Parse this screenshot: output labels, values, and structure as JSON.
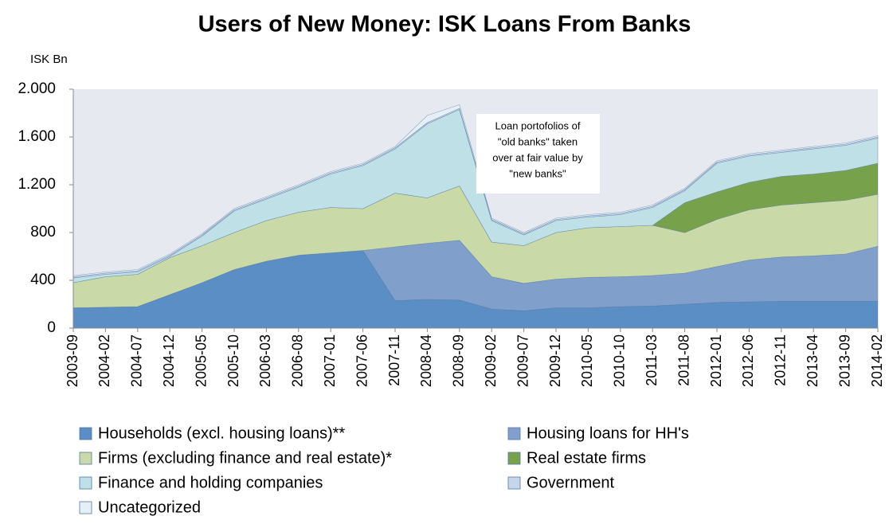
{
  "chart_data": {
    "type": "stacked_area",
    "title": "Users of New Money: ISK Loans From Banks",
    "y_axis_label": "ISK Bn",
    "categories": [
      "2003-09",
      "2004-02",
      "2004-07",
      "2004-12",
      "2005-05",
      "2005-10",
      "2006-03",
      "2006-08",
      "2007-01",
      "2007-06",
      "2007-11",
      "2008-04",
      "2008-09",
      "2009-02",
      "2009-07",
      "2009-12",
      "2010-05",
      "2010-10",
      "2011-03",
      "2011-08",
      "2012-01",
      "2012-06",
      "2012-11",
      "2013-04",
      "2013-09",
      "2014-02"
    ],
    "series": [
      {
        "name": "Households (excl. housing loans)**",
        "color": "#5b8ec4",
        "values": [
          170,
          175,
          180,
          280,
          380,
          490,
          560,
          610,
          630,
          650,
          230,
          240,
          235,
          160,
          145,
          170,
          170,
          180,
          185,
          200,
          215,
          220,
          225,
          225,
          225,
          225
        ]
      },
      {
        "name": "Housing loans for HH's",
        "color": "#819fcb",
        "values": [
          0,
          0,
          0,
          0,
          0,
          0,
          0,
          0,
          0,
          0,
          450,
          470,
          500,
          270,
          230,
          240,
          255,
          250,
          255,
          260,
          300,
          350,
          370,
          380,
          395,
          460
        ]
      },
      {
        "name": "Firms (excluding finance and real estate)*",
        "color": "#c9d9a8",
        "values": [
          210,
          255,
          270,
          310,
          310,
          310,
          340,
          360,
          380,
          350,
          450,
          380,
          455,
          290,
          315,
          390,
          415,
          420,
          420,
          340,
          395,
          420,
          435,
          445,
          450,
          435
        ]
      },
      {
        "name": "Real estate firms",
        "color": "#78a14b",
        "values": [
          0,
          0,
          0,
          0,
          0,
          0,
          0,
          0,
          0,
          0,
          0,
          0,
          0,
          0,
          0,
          0,
          0,
          0,
          0,
          250,
          230,
          230,
          240,
          240,
          250,
          260
        ]
      },
      {
        "name": "Finance and holding companies",
        "color": "#bfe0e6",
        "values": [
          40,
          20,
          20,
          10,
          80,
          180,
          180,
          210,
          280,
          360,
          370,
          620,
          640,
          180,
          90,
          100,
          90,
          100,
          150,
          100,
          240,
          220,
          200,
          210,
          210,
          210
        ]
      },
      {
        "name": "Government",
        "color": "#c7d5ec",
        "values": [
          10,
          10,
          10,
          10,
          10,
          10,
          10,
          10,
          10,
          10,
          10,
          10,
          10,
          10,
          10,
          10,
          10,
          10,
          10,
          10,
          10,
          10,
          10,
          10,
          10,
          10
        ]
      },
      {
        "name": "Uncategorized",
        "color": "#e4f0f5",
        "values": [
          10,
          10,
          10,
          10,
          10,
          10,
          10,
          10,
          10,
          10,
          10,
          60,
          30,
          10,
          10,
          10,
          10,
          10,
          10,
          10,
          10,
          10,
          10,
          10,
          10,
          10
        ]
      }
    ],
    "ylim": [
      0,
      2000
    ],
    "yticks": [
      0,
      400,
      800,
      {
        "value": 1200,
        "label": "1.200"
      },
      {
        "value": 1600,
        "label": "1.600"
      },
      {
        "value": 2000,
        "label": "2.000"
      }
    ],
    "grid": false,
    "plot_background": "#e6e9f0",
    "annotation": [
      "Loan portofolios of",
      "\"old banks\" taken",
      "over at fair value by",
      "\"new banks\""
    ]
  }
}
